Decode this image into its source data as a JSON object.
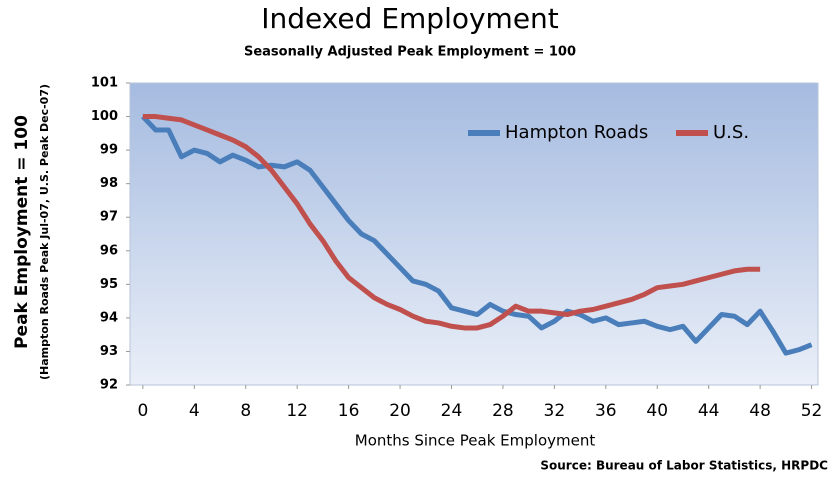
{
  "chart_data": {
    "type": "line",
    "title": "Indexed Employment",
    "subtitle": "Seasonally Adjusted Peak Employment = 100",
    "ylabel": "Peak Employment = 100",
    "ylabel_note": "(Hampton Roads Peak Jul-07, U.S. Peak Dec-07)",
    "xlabel": "Months Since Peak Employment",
    "source": "Source: Bureau of Labor Statistics, HRPDC",
    "x": [
      0,
      1,
      2,
      3,
      4,
      5,
      6,
      7,
      8,
      9,
      10,
      11,
      12,
      13,
      14,
      15,
      16,
      17,
      18,
      19,
      20,
      21,
      22,
      23,
      24,
      25,
      26,
      27,
      28,
      29,
      30,
      31,
      32,
      33,
      34,
      35,
      36,
      37,
      38,
      39,
      40,
      41,
      42,
      43,
      44,
      45,
      46,
      47,
      48,
      49,
      50,
      51,
      52
    ],
    "series": [
      {
        "name": "Hampton Roads",
        "color": "#4a7ebb",
        "values": [
          100,
          99.6,
          99.6,
          98.8,
          99.0,
          98.9,
          98.65,
          98.85,
          98.7,
          98.5,
          98.55,
          98.5,
          98.65,
          98.4,
          97.9,
          97.4,
          96.9,
          96.5,
          96.3,
          95.9,
          95.5,
          95.1,
          95.0,
          94.8,
          94.3,
          94.2,
          94.1,
          94.4,
          94.2,
          94.1,
          94.05,
          93.7,
          93.9,
          94.2,
          94.1,
          93.9,
          94.0,
          93.8,
          93.85,
          93.9,
          93.75,
          93.65,
          93.75,
          93.3,
          93.7,
          94.1,
          94.05,
          93.8,
          94.2,
          93.6,
          92.95,
          93.05,
          93.2
        ]
      },
      {
        "name": "U.S.",
        "color": "#c0504d",
        "values": [
          100,
          100,
          99.95,
          99.9,
          99.75,
          99.6,
          99.45,
          99.3,
          99.1,
          98.8,
          98.4,
          97.9,
          97.4,
          96.8,
          96.3,
          95.7,
          95.2,
          94.9,
          94.6,
          94.4,
          94.25,
          94.05,
          93.9,
          93.85,
          93.75,
          93.7,
          93.7,
          93.8,
          94.05,
          94.35,
          94.2,
          94.2,
          94.15,
          94.1,
          94.2,
          94.25,
          94.35,
          94.45,
          94.55,
          94.7,
          94.9,
          94.95,
          95.0,
          95.1,
          95.2,
          95.3,
          95.4,
          95.45,
          95.45,
          null,
          null,
          null,
          null
        ]
      }
    ],
    "xlim": [
      -1,
      52.5
    ],
    "xticks": [
      0,
      4,
      8,
      12,
      16,
      20,
      24,
      28,
      32,
      36,
      40,
      44,
      48,
      52
    ],
    "ylim": [
      92,
      101
    ],
    "yticks": [
      92,
      93,
      94,
      95,
      96,
      97,
      98,
      99,
      100,
      101
    ],
    "grid": false
  }
}
